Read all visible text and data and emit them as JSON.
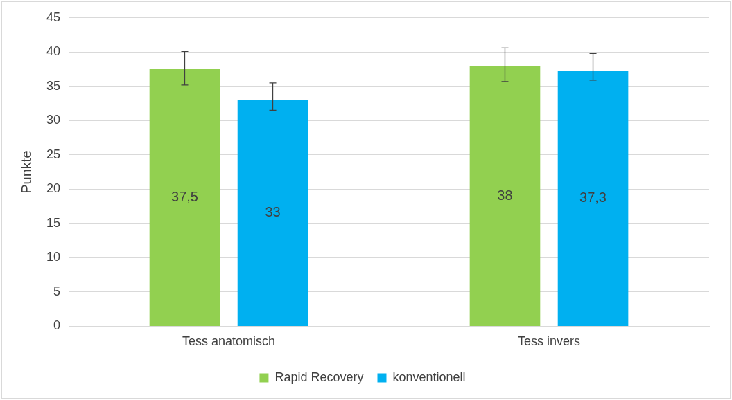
{
  "chart_data": {
    "type": "bar",
    "ylabel": "Punkte",
    "categories": [
      "Tess anatomisch",
      "Tess invers"
    ],
    "series": [
      {
        "name": "Rapid Recovery",
        "color": "#92d050",
        "values": [
          37.5,
          38
        ],
        "value_labels": [
          "37,5",
          "38"
        ],
        "errors": [
          [
            35.2,
            40.1
          ],
          [
            35.7,
            40.6
          ]
        ]
      },
      {
        "name": "konventionell",
        "color": "#00b0f0",
        "values": [
          33,
          37.3
        ],
        "value_labels": [
          "33",
          "37,3"
        ],
        "errors": [
          [
            31.5,
            35.5
          ],
          [
            35.9,
            39.8
          ]
        ]
      }
    ],
    "ylim": [
      0,
      45
    ],
    "yticks": [
      0,
      5,
      10,
      15,
      20,
      25,
      30,
      35,
      40,
      45
    ],
    "grid": "y",
    "legend": "bottom"
  }
}
